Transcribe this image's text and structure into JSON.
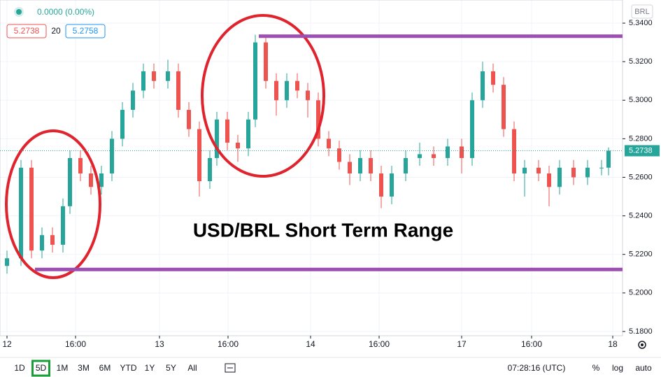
{
  "header": {
    "change": "0.0000 (0.00%)",
    "bid": "5.2738",
    "spread": "20",
    "ask": "5.2758",
    "currency": "BRL"
  },
  "chart_data": {
    "type": "candlestick",
    "annotation": "USD/BRL Short Term Range",
    "x": [
      1,
      3,
      4.5,
      6,
      7.5,
      9,
      10,
      11.5,
      13,
      14.5,
      16,
      17.5,
      19,
      20.5,
      22,
      24,
      25.5,
      27,
      28.5,
      30,
      31,
      32.5,
      34,
      35.5,
      36.5,
      38,
      39.5,
      41,
      42.5,
      44,
      45.5,
      47,
      48.5,
      50,
      51.5,
      53,
      54.5,
      56,
      58,
      60,
      62,
      64,
      66,
      67.5,
      69,
      70.5,
      72,
      73.5,
      75,
      77,
      78.5,
      80,
      82,
      84,
      86,
      87
    ],
    "open": [
      5.214,
      5.218,
      5.265,
      5.222,
      5.23,
      5.225,
      5.245,
      5.27,
      5.262,
      5.255,
      5.262,
      5.28,
      5.295,
      5.305,
      5.315,
      5.31,
      5.315,
      5.295,
      5.285,
      5.258,
      5.27,
      5.29,
      5.278,
      5.275,
      5.29,
      5.33,
      5.31,
      5.3,
      5.31,
      5.305,
      5.3,
      5.28,
      5.275,
      5.268,
      5.262,
      5.27,
      5.262,
      5.25,
      5.262,
      5.27,
      5.272,
      5.27,
      5.276,
      5.27,
      5.3,
      5.315,
      5.308,
      5.285,
      5.262,
      5.265,
      5.262,
      5.255,
      5.265,
      5.26,
      5.265,
      5.265
    ],
    "high": [
      5.222,
      5.269,
      5.269,
      5.234,
      5.234,
      5.249,
      5.274,
      5.274,
      5.266,
      5.266,
      5.284,
      5.299,
      5.309,
      5.319,
      5.319,
      5.321,
      5.319,
      5.299,
      5.289,
      5.274,
      5.294,
      5.294,
      5.282,
      5.294,
      5.334,
      5.334,
      5.314,
      5.314,
      5.314,
      5.309,
      5.304,
      5.284,
      5.279,
      5.272,
      5.274,
      5.274,
      5.266,
      5.266,
      5.274,
      5.278,
      5.276,
      5.28,
      5.28,
      5.304,
      5.32,
      5.319,
      5.312,
      5.289,
      5.269,
      5.269,
      5.266,
      5.269,
      5.269,
      5.269,
      5.269,
      5.2755
    ],
    "low": [
      5.21,
      5.214,
      5.218,
      5.218,
      5.221,
      5.221,
      5.241,
      5.258,
      5.251,
      5.251,
      5.258,
      5.276,
      5.291,
      5.301,
      5.306,
      5.306,
      5.291,
      5.281,
      5.25,
      5.254,
      5.266,
      5.274,
      5.268,
      5.271,
      5.286,
      5.306,
      5.292,
      5.296,
      5.301,
      5.291,
      5.276,
      5.271,
      5.264,
      5.256,
      5.258,
      5.258,
      5.244,
      5.246,
      5.258,
      5.266,
      5.266,
      5.266,
      5.262,
      5.266,
      5.296,
      5.304,
      5.281,
      5.258,
      5.25,
      5.258,
      5.245,
      5.251,
      5.256,
      5.256,
      5.261,
      5.261
    ],
    "close": [
      5.218,
      5.265,
      5.222,
      5.23,
      5.225,
      5.245,
      5.27,
      5.262,
      5.255,
      5.262,
      5.28,
      5.295,
      5.305,
      5.315,
      5.31,
      5.315,
      5.295,
      5.285,
      5.258,
      5.27,
      5.29,
      5.278,
      5.275,
      5.29,
      5.33,
      5.31,
      5.3,
      5.31,
      5.305,
      5.3,
      5.28,
      5.275,
      5.268,
      5.262,
      5.27,
      5.262,
      5.25,
      5.262,
      5.27,
      5.272,
      5.27,
      5.276,
      5.27,
      5.3,
      5.315,
      5.308,
      5.285,
      5.262,
      5.265,
      5.262,
      5.255,
      5.265,
      5.26,
      5.265,
      5.265,
      5.2738
    ],
    "up_color": "#26a69a",
    "down_color": "#ef5350",
    "last_price": {
      "value": 5.2738,
      "label": "5.2738"
    },
    "levels": [
      {
        "value": 5.3332,
        "x": [
          37,
          89
        ],
        "color": "#9c4fb0"
      },
      {
        "value": 5.2122,
        "x": [
          5,
          89
        ],
        "color": "#9c4fb0"
      }
    ],
    "xlim": [
      0,
      89
    ],
    "xticks": [
      {
        "value": 1,
        "label": "12"
      },
      {
        "value": 10.8,
        "label": "16:00"
      },
      {
        "value": 22.8,
        "label": "13"
      },
      {
        "value": 32.6,
        "label": "16:00"
      },
      {
        "value": 44.4,
        "label": "14"
      },
      {
        "value": 54.2,
        "label": "16:00"
      },
      {
        "value": 66,
        "label": "17"
      },
      {
        "value": 76,
        "label": "16:00"
      },
      {
        "value": 87.6,
        "label": "18"
      }
    ],
    "ylim": [
      5.1778,
      5.352
    ],
    "yticks": [
      {
        "value": 5.18,
        "label": "5.1800"
      },
      {
        "value": 5.2,
        "label": "5.2000"
      },
      {
        "value": 5.22,
        "label": "5.2200"
      },
      {
        "value": 5.24,
        "label": "5.2400"
      },
      {
        "value": 5.26,
        "label": "5.2600"
      },
      {
        "value": 5.28,
        "label": "5.2800"
      },
      {
        "value": 5.3,
        "label": "5.3000"
      },
      {
        "value": 5.32,
        "label": "5.3200"
      },
      {
        "value": 5.34,
        "label": "5.3400"
      }
    ],
    "grid": true
  },
  "toolbar": {
    "ranges": [
      "1D",
      "5D",
      "1M",
      "3M",
      "6M",
      "YTD",
      "1Y",
      "5Y",
      "All"
    ],
    "active": 1,
    "time": "07:28:16 (UTC)",
    "percent": "%",
    "log": "log",
    "auto": "auto"
  }
}
